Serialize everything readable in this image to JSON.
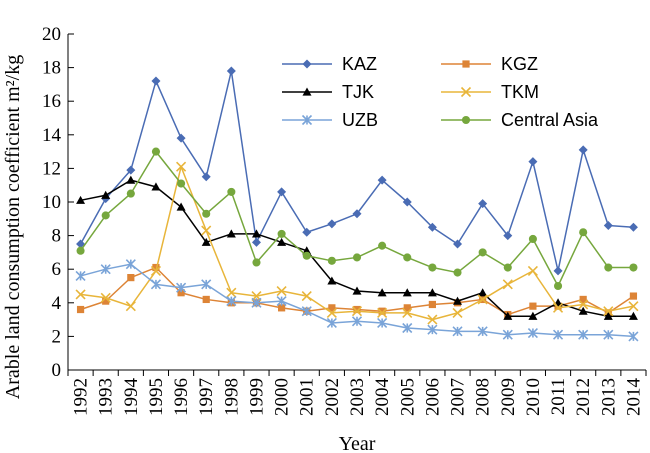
{
  "chart_data": {
    "type": "line",
    "xlabel": "Year",
    "ylabel": "Arable land consumption coefficient m²/kg",
    "ylim": [
      0,
      20
    ],
    "yticks": [
      0,
      2,
      4,
      6,
      8,
      10,
      12,
      14,
      16,
      18,
      20
    ],
    "grid": false,
    "legend_position": "top-right",
    "x": [
      "1992",
      "1993",
      "1994",
      "1995",
      "1996",
      "1997",
      "1998",
      "1999",
      "2000",
      "2001",
      "2002",
      "2003",
      "2004",
      "2005",
      "2006",
      "2007",
      "2008",
      "2009",
      "2010",
      "2011",
      "2012",
      "2013",
      "2014"
    ],
    "series": [
      {
        "name": "KAZ",
        "color": "#4a6cb4",
        "marker": "diamond",
        "values": [
          7.5,
          10.2,
          11.9,
          17.2,
          13.8,
          11.5,
          17.8,
          7.6,
          10.6,
          8.2,
          8.7,
          9.3,
          11.3,
          10.0,
          8.5,
          7.5,
          9.9,
          8.0,
          12.4,
          5.9,
          13.1,
          8.6,
          8.5
        ]
      },
      {
        "name": "KGZ",
        "color": "#dd8436",
        "marker": "square",
        "values": [
          3.6,
          4.1,
          5.5,
          6.1,
          4.6,
          4.2,
          4.0,
          4.0,
          3.7,
          3.5,
          3.7,
          3.6,
          3.5,
          3.7,
          3.9,
          4.0,
          4.2,
          3.3,
          3.8,
          3.8,
          4.2,
          3.4,
          4.4
        ]
      },
      {
        "name": "TJK",
        "color": "#000000",
        "marker": "triangle",
        "values": [
          10.1,
          10.4,
          11.3,
          10.9,
          9.7,
          7.6,
          8.1,
          8.1,
          7.6,
          7.1,
          5.3,
          4.7,
          4.6,
          4.6,
          4.6,
          4.1,
          4.6,
          3.2,
          3.2,
          4.0,
          3.5,
          3.2,
          3.2
        ]
      },
      {
        "name": "TKM",
        "color": "#e8b53a",
        "marker": "x",
        "values": [
          4.5,
          4.3,
          3.8,
          5.9,
          12.1,
          8.3,
          4.6,
          4.4,
          4.7,
          4.4,
          3.4,
          3.5,
          3.4,
          3.4,
          3.0,
          3.4,
          4.2,
          5.1,
          5.9,
          3.7,
          3.9,
          3.5,
          3.8
        ]
      },
      {
        "name": "UZB",
        "color": "#7aa4d8",
        "marker": "star",
        "values": [
          5.6,
          6.0,
          6.3,
          5.1,
          4.9,
          5.1,
          4.1,
          4.0,
          4.1,
          3.5,
          2.8,
          2.9,
          2.8,
          2.5,
          2.4,
          2.3,
          2.3,
          2.1,
          2.2,
          2.1,
          2.1,
          2.1,
          2.0
        ]
      },
      {
        "name": "Central Asia",
        "color": "#76a73d",
        "marker": "circle",
        "values": [
          7.1,
          9.2,
          10.5,
          13.0,
          11.1,
          9.3,
          10.6,
          6.4,
          8.1,
          6.8,
          6.5,
          6.7,
          7.4,
          6.7,
          6.1,
          5.8,
          7.0,
          6.1,
          7.8,
          5.0,
          8.2,
          6.1,
          6.1
        ]
      }
    ]
  }
}
